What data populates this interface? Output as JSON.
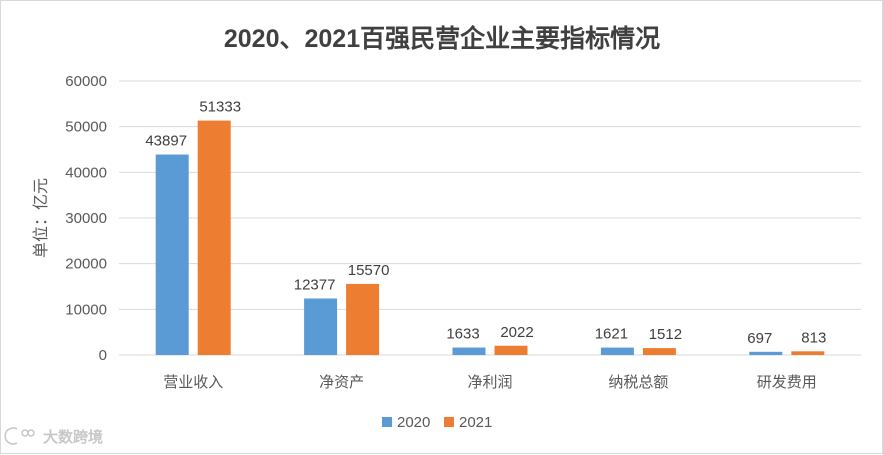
{
  "chart_data": {
    "type": "bar",
    "title": "2020、2021百强民营企业主要指标情况",
    "ylabel": "单位：亿元",
    "xlabel": "",
    "ylim": [
      0,
      60000
    ],
    "yticks": [
      0,
      10000,
      20000,
      30000,
      40000,
      50000,
      60000
    ],
    "grid": true,
    "legend_position": "bottom",
    "categories": [
      "营业收入",
      "净资产",
      "净利润",
      "纳税总额",
      "研发费用"
    ],
    "series": [
      {
        "name": "2020",
        "color": "#5b9bd5",
        "values": [
          43897,
          12377,
          1633,
          1621,
          697
        ]
      },
      {
        "name": "2021",
        "color": "#ed7d31",
        "values": [
          51333,
          15570,
          2022,
          1512,
          813
        ]
      }
    ]
  },
  "watermark": {
    "text": "大数跨境",
    "icon": "watermark-logo-icon"
  }
}
